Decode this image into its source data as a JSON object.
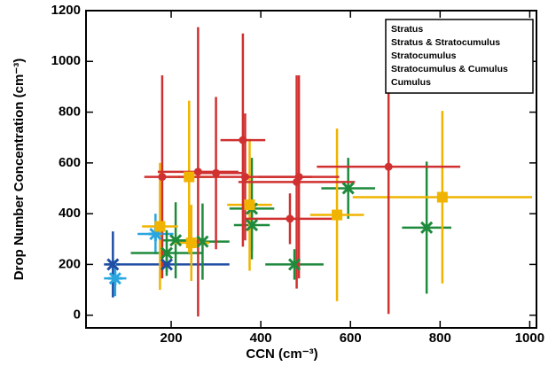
{
  "chart_data": {
    "type": "scatter",
    "x_label": "CCN (cm⁻³)",
    "y_label": "Drop Number Concentration (cm⁻³)",
    "xlim": [
      10,
      1015
    ],
    "ylim": [
      -50,
      1200
    ],
    "xticks": [
      200,
      400,
      600,
      800,
      1000
    ],
    "yticks": [
      0,
      200,
      400,
      600,
      800,
      1000,
      1200
    ],
    "legend": "upper right",
    "series": [
      {
        "name": "Stratus",
        "color": "#1f4ea3",
        "marker": "x",
        "x": [
          70,
          190
        ],
        "values": [
          200,
          200
        ],
        "x_err": [
          15,
          140
        ],
        "y_err": [
          130,
          30
        ]
      },
      {
        "name": "Stratus & Stratocumulus",
        "color": "#2aa6df",
        "marker": "star",
        "x": [
          75,
          165
        ],
        "values": [
          145,
          320
        ],
        "x_err": [
          25,
          40
        ],
        "y_err": [
          70,
          80
        ]
      },
      {
        "name": "Stratocumulus",
        "color": "#1e8a3c",
        "marker": "x",
        "x": [
          190,
          210,
          270,
          380,
          380,
          475,
          595,
          770
        ],
        "values": [
          245,
          295,
          290,
          420,
          355,
          200,
          500,
          345
        ],
        "x_err": [
          80,
          30,
          60,
          50,
          40,
          65,
          60,
          55
        ],
        "y_err": [
          90,
          150,
          150,
          200,
          100,
          60,
          120,
          260
        ]
      },
      {
        "name": "Stratocumulus & Cumulus",
        "color": "#f0b400",
        "marker": "square",
        "x": [
          240,
          245,
          175,
          375,
          570,
          805
        ],
        "values": [
          545,
          285,
          350,
          435,
          395,
          465
        ],
        "x_err": [
          50,
          40,
          40,
          50,
          60,
          200
        ],
        "y_err": [
          300,
          150,
          250,
          260,
          340,
          340
        ]
      },
      {
        "name": "Cumulus",
        "color": "#d03030",
        "marker": "circle",
        "x": [
          180,
          260,
          300,
          360,
          365,
          465,
          480,
          485,
          685
        ],
        "values": [
          545,
          565,
          560,
          690,
          545,
          380,
          525,
          545,
          585
        ],
        "x_err": [
          40,
          90,
          60,
          50,
          150,
          100,
          130,
          90,
          160
        ],
        "y_err": [
          400,
          570,
          300,
          420,
          250,
          100,
          420,
          400,
          580
        ]
      }
    ]
  }
}
